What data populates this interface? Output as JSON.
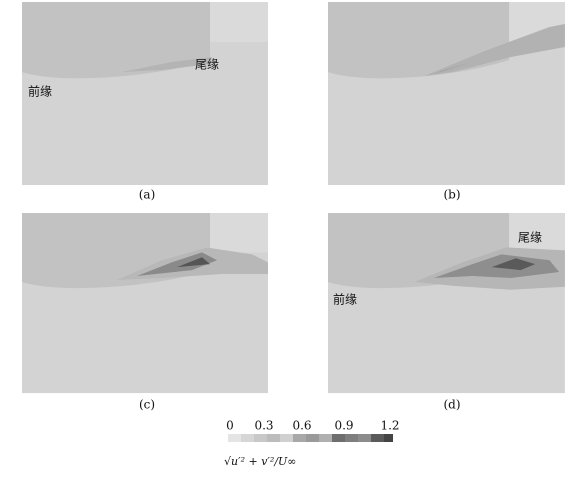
{
  "panels": [
    {
      "label": "(a)",
      "annotations": [
        "前缘",
        "尾缘"
      ]
    },
    {
      "label": "(b)",
      "annotations": []
    },
    {
      "label": "(c)",
      "annotations": []
    },
    {
      "label": "(d)",
      "annotations": [
        "尾缘",
        "前缘"
      ]
    }
  ],
  "colorbar": {
    "ticks": [
      0,
      0.3,
      0.6,
      0.9,
      1.2
    ],
    "label": "√u′² + v′²/U∞"
  }
}
